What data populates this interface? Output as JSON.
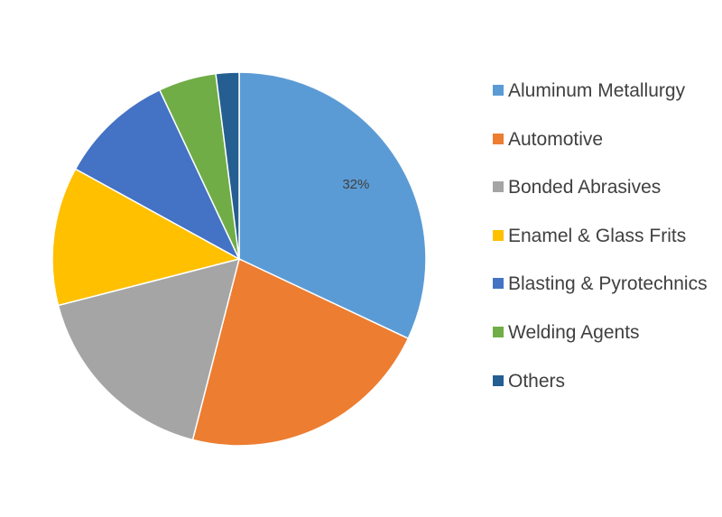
{
  "chart_data": {
    "type": "pie",
    "categories": [
      "Aluminum Metallurgy",
      "Automotive",
      "Bonded Abrasives",
      "Enamel & Glass Frits",
      "Blasting & Pyrotechnics",
      "Welding Agents",
      "Others"
    ],
    "values": [
      32,
      22,
      17,
      12,
      10,
      5,
      2
    ],
    "value_labels": [
      "32%",
      null,
      null,
      null,
      null,
      null,
      null
    ],
    "colors": [
      "#5b9bd5",
      "#ed7d31",
      "#a5a5a5",
      "#ffc000",
      "#4472c4",
      "#70ad47",
      "#255e91"
    ],
    "legend": "right"
  }
}
